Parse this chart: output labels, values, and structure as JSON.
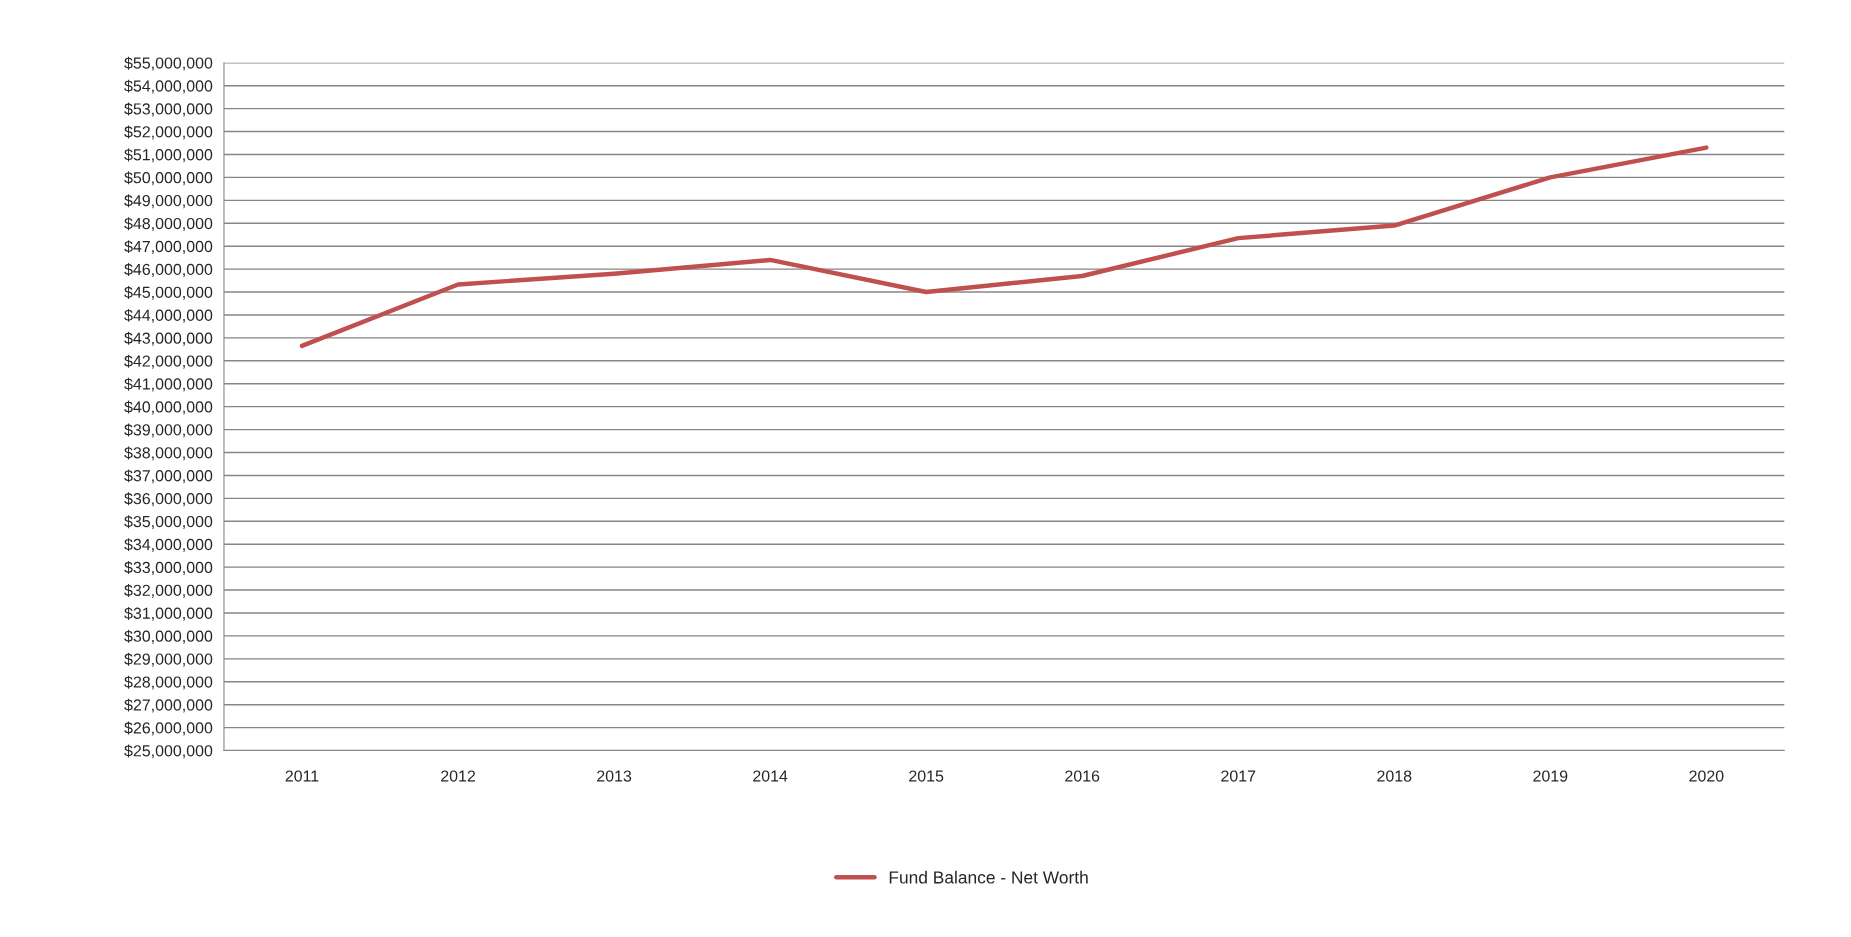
{
  "chart_data": {
    "type": "line",
    "categories": [
      "2011",
      "2012",
      "2013",
      "2014",
      "2015",
      "2016",
      "2017",
      "2018",
      "2019",
      "2020"
    ],
    "series": [
      {
        "name": "Fund Balance - Net Worth",
        "color": "#c0504d",
        "values": [
          42650000,
          45330000,
          45800000,
          46400000,
          45000000,
          45700000,
          47350000,
          47900000,
          50000000,
          51300000
        ]
      }
    ],
    "ylim": [
      25000000,
      55000000
    ],
    "yticks": [
      {
        "value": 25000000,
        "label": "$25,000,000"
      },
      {
        "value": 26000000,
        "label": "$26,000,000"
      },
      {
        "value": 27000000,
        "label": "$27,000,000"
      },
      {
        "value": 28000000,
        "label": "$28,000,000"
      },
      {
        "value": 29000000,
        "label": "$29,000,000"
      },
      {
        "value": 30000000,
        "label": "$30,000,000"
      },
      {
        "value": 31000000,
        "label": "$31,000,000"
      },
      {
        "value": 32000000,
        "label": "$32,000,000"
      },
      {
        "value": 33000000,
        "label": "$33,000,000"
      },
      {
        "value": 34000000,
        "label": "$34,000,000"
      },
      {
        "value": 35000000,
        "label": "$35,000,000"
      },
      {
        "value": 36000000,
        "label": "$36,000,000"
      },
      {
        "value": 37000000,
        "label": "$37,000,000"
      },
      {
        "value": 38000000,
        "label": "$38,000,000"
      },
      {
        "value": 39000000,
        "label": "$39,000,000"
      },
      {
        "value": 40000000,
        "label": "$40,000,000"
      },
      {
        "value": 41000000,
        "label": "$41,000,000"
      },
      {
        "value": 42000000,
        "label": "$42,000,000"
      },
      {
        "value": 43000000,
        "label": "$43,000,000"
      },
      {
        "value": 44000000,
        "label": "$44,000,000"
      },
      {
        "value": 45000000,
        "label": "$45,000,000"
      },
      {
        "value": 46000000,
        "label": "$46,000,000"
      },
      {
        "value": 47000000,
        "label": "$47,000,000"
      },
      {
        "value": 48000000,
        "label": "$48,000,000"
      },
      {
        "value": 49000000,
        "label": "$49,000,000"
      },
      {
        "value": 50000000,
        "label": "$50,000,000"
      },
      {
        "value": 51000000,
        "label": "$51,000,000"
      },
      {
        "value": 52000000,
        "label": "$52,000,000"
      },
      {
        "value": 53000000,
        "label": "$53,000,000"
      },
      {
        "value": 54000000,
        "label": "$54,000,000"
      },
      {
        "value": 55000000,
        "label": "$55,000,000"
      }
    ],
    "grid": "y",
    "legend": "bottom",
    "marker": "none",
    "line_style": "solid"
  }
}
